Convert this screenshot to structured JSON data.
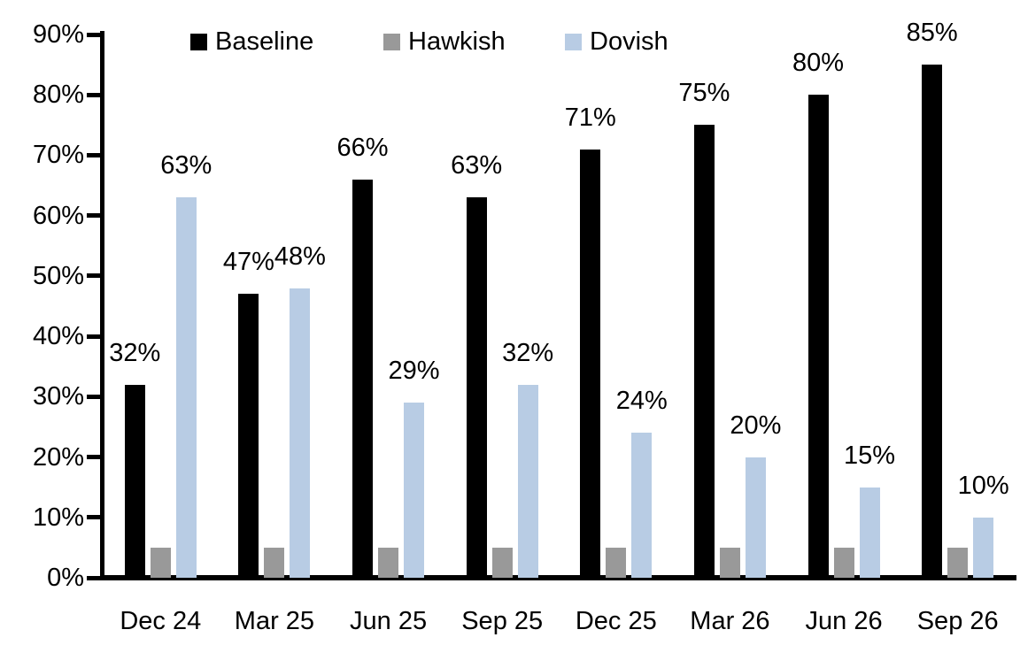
{
  "chart_data": {
    "type": "bar",
    "title": "",
    "xlabel": "",
    "ylabel": "",
    "categories": [
      "Dec 24",
      "Mar 25",
      "Jun 25",
      "Sep 25",
      "Dec 25",
      "Mar 26",
      "Jun 26",
      "Sep 26"
    ],
    "series": [
      {
        "name": "Baseline",
        "color": "#000000",
        "values": [
          32,
          47,
          66,
          63,
          71,
          75,
          80,
          85
        ],
        "data_labels": true
      },
      {
        "name": "Hawkish",
        "color": "#999999",
        "values": [
          5,
          5,
          5,
          5,
          5,
          5,
          5,
          5
        ],
        "data_labels": false
      },
      {
        "name": "Dovish",
        "color": "#B8CCE4",
        "values": [
          63,
          48,
          29,
          32,
          24,
          20,
          15,
          10
        ],
        "data_labels": true
      }
    ],
    "ylim": [
      0,
      90
    ],
    "ytick_labels": [
      "0%",
      "10%",
      "20%",
      "30%",
      "40%",
      "50%",
      "60%",
      "70%",
      "80%",
      "90%"
    ],
    "data_label_suffix": "%",
    "grid": false,
    "legend_position": "top"
  }
}
